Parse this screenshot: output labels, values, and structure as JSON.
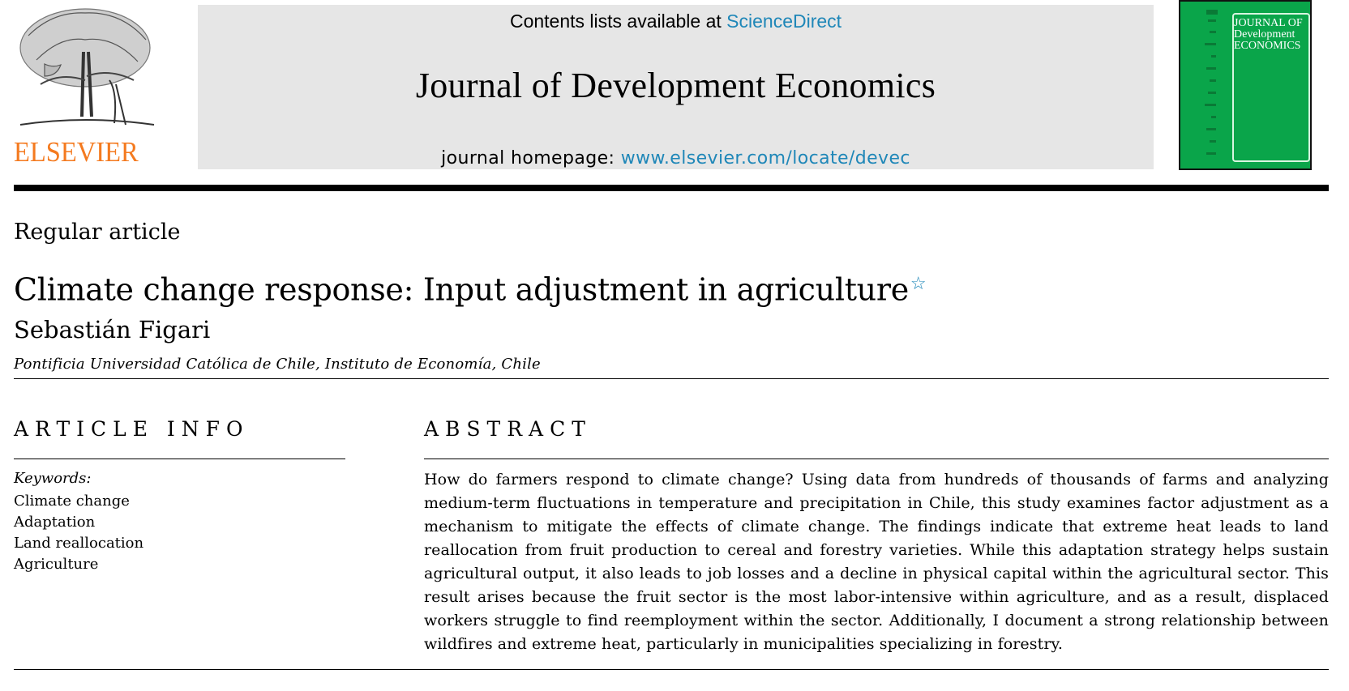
{
  "header": {
    "publisher_logo_text": "ELSEVIER",
    "contents_prefix": "Contents lists available at ",
    "contents_link": "ScienceDirect",
    "journal_title": "Journal of Development Economics",
    "homepage_prefix": "journal homepage: ",
    "homepage_link": "www.elsevier.com/locate/devec",
    "cover_text": [
      "JOURNAL OF",
      "Development",
      "ECONOMICS"
    ]
  },
  "article": {
    "type": "Regular article",
    "title": "Climate change response: Input adjustment in agriculture",
    "title_note_symbol": "☆",
    "author": "Sebastián Figari",
    "affiliation": "Pontificia Universidad Católica de Chile, Instituto de Economía, Chile"
  },
  "article_info": {
    "heading": "ARTICLE INFO",
    "keywords_label": "Keywords:",
    "keywords": [
      "Climate change",
      "Adaptation",
      "Land reallocation",
      "Agriculture"
    ]
  },
  "abstract": {
    "heading": "ABSTRACT",
    "text": "How do farmers respond to climate change? Using data from hundreds of thousands of farms and analyzing medium-term fluctuations in temperature and precipitation in Chile, this study examines factor adjustment as a mechanism to mitigate the effects of climate change. The findings indicate that extreme heat leads to land reallocation from fruit production to cereal and forestry varieties. While this adaptation strategy helps sustain agricultural output, it also leads to job losses and a decline in physical capital within the agricultural sector. This result arises because the fruit sector is the most labor-intensive within agriculture, and as a result, displaced workers struggle to find reemployment within the sector. Additionally, I document a strong relationship between wildfires and extreme heat, particularly in municipalities specializing in forestry."
  },
  "colors": {
    "link": "#1f87b8",
    "elsevier_orange": "#f47a1f",
    "banner_gray": "#e6e6e6",
    "cover_green": "#0aa54a"
  }
}
